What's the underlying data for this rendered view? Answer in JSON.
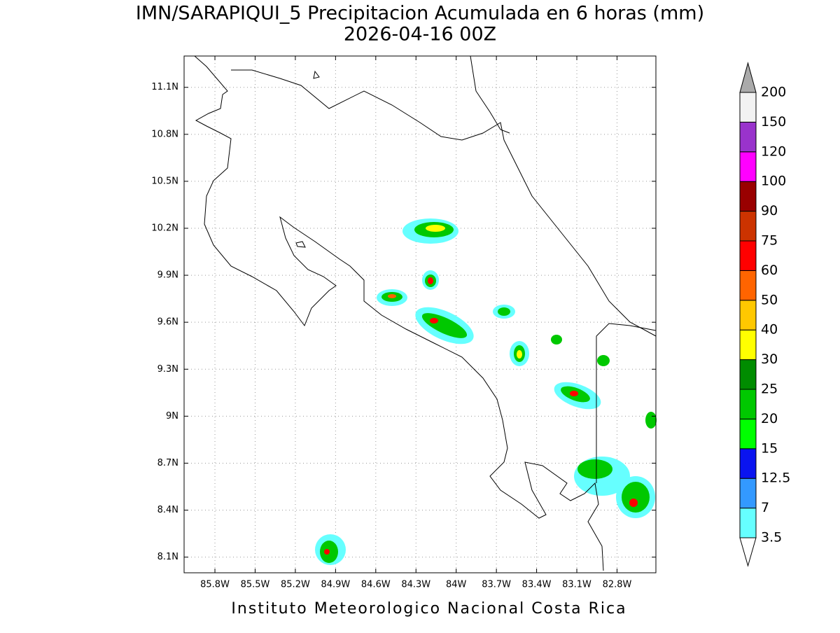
{
  "map": {
    "title": "IMN/SARAPIQUI_5 Precipitacion Acumulada en 6 horas (mm)",
    "subtitle": "2026-04-16 00Z",
    "footer": "Instituto Meteorologico Nacional Costa Rica",
    "xlim": [
      -86.03,
      -82.51
    ],
    "ylim": [
      8.0,
      11.3
    ],
    "xticks": [
      {
        "value": -85.8,
        "label": "85.8W"
      },
      {
        "value": -85.5,
        "label": "85.5W"
      },
      {
        "value": -85.2,
        "label": "85.2W"
      },
      {
        "value": -84.9,
        "label": "84.9W"
      },
      {
        "value": -84.6,
        "label": "84.6W"
      },
      {
        "value": -84.3,
        "label": "84.3W"
      },
      {
        "value": -84.0,
        "label": "84W"
      },
      {
        "value": -83.7,
        "label": "83.7W"
      },
      {
        "value": -83.4,
        "label": "83.4W"
      },
      {
        "value": -83.1,
        "label": "83.1W"
      },
      {
        "value": -82.8,
        "label": "82.8W"
      }
    ],
    "yticks": [
      {
        "value": 8.1,
        "label": "8.1N"
      },
      {
        "value": 8.4,
        "label": "8.4N"
      },
      {
        "value": 8.7,
        "label": "8.7N"
      },
      {
        "value": 9.0,
        "label": "9N"
      },
      {
        "value": 9.3,
        "label": "9.3N"
      },
      {
        "value": 9.6,
        "label": "9.6N"
      },
      {
        "value": 9.9,
        "label": "9.9N"
      },
      {
        "value": 10.2,
        "label": "10.2N"
      },
      {
        "value": 10.5,
        "label": "10.5N"
      },
      {
        "value": 10.8,
        "label": "10.8N"
      },
      {
        "value": 11.1,
        "label": "11.1N"
      }
    ],
    "grid": true,
    "colorbar": {
      "levels": [
        3.5,
        7,
        12.5,
        15,
        20,
        25,
        30,
        40,
        50,
        60,
        75,
        90,
        100,
        120,
        150,
        200
      ],
      "colors": [
        "#66ffff",
        "#3399ff",
        "#0a14f0",
        "#00ff00",
        "#00c800",
        "#008c00",
        "#ffff00",
        "#ffc800",
        "#ff6400",
        "#ff0000",
        "#cc3300",
        "#990000",
        "#ff00ff",
        "#9933cc",
        "#f2f2f2"
      ],
      "under_color": "#ffffff",
      "over_color": "#aaaaaa"
    }
  }
}
